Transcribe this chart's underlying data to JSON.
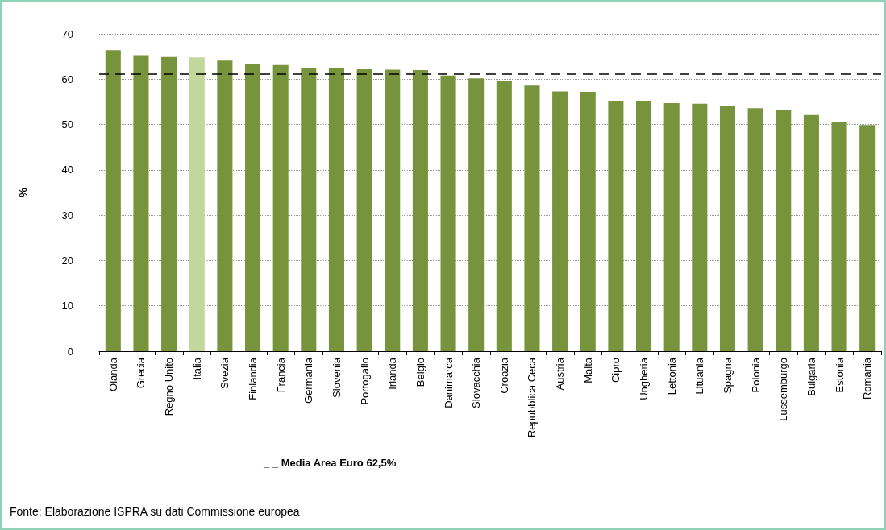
{
  "chart_data": {
    "type": "bar",
    "ylabel": "%",
    "categories": [
      "Olanda",
      "Grecia",
      "Regno Unito",
      "Italia",
      "Svezia",
      "Finlandia",
      "Francia",
      "Germania",
      "Slovenia",
      "Portogallo",
      "Irlanda",
      "Belgio",
      "Danimarca",
      "Slovacchia",
      "Croazia",
      "Repubblica Ceca",
      "Austria",
      "Malta",
      "Cipro",
      "Ungheria",
      "Lettonia",
      "Lituania",
      "Spagna",
      "Polonia",
      "Lussemburgo",
      "Bulgaria",
      "Estonia",
      "Romania"
    ],
    "values": [
      66.4,
      65.3,
      64.9,
      64.8,
      64.1,
      63.3,
      63.1,
      62.5,
      62.5,
      62.2,
      62.1,
      62.0,
      60.8,
      60.2,
      59.5,
      58.6,
      57.3,
      57.2,
      55.2,
      55.2,
      54.7,
      54.6,
      54.1,
      53.6,
      53.3,
      52.1,
      50.5,
      49.9
    ],
    "colors": [
      "#77933c",
      "#77933c",
      "#77933c",
      "#c3d69b",
      "#77933c",
      "#77933c",
      "#77933c",
      "#77933c",
      "#77933c",
      "#77933c",
      "#77933c",
      "#77933c",
      "#77933c",
      "#77933c",
      "#77933c",
      "#77933c",
      "#77933c",
      "#77933c",
      "#77933c",
      "#77933c",
      "#77933c",
      "#77933c",
      "#77933c",
      "#77933c",
      "#77933c",
      "#77933c",
      "#77933c",
      "#77933c"
    ],
    "ylim": [
      0,
      70
    ],
    "yticks": [
      0,
      10,
      20,
      30,
      40,
      50,
      60,
      70
    ],
    "grid": "y",
    "ref_lines": [
      {
        "axis": "y",
        "value": 61.2,
        "label": "_ _ Media Area Euro 62,5%",
        "color": "#000000",
        "line_style": "dashed"
      }
    ],
    "annotations": [
      "Fonte: Elaborazione ISPRA su dati Commissione europea"
    ]
  }
}
